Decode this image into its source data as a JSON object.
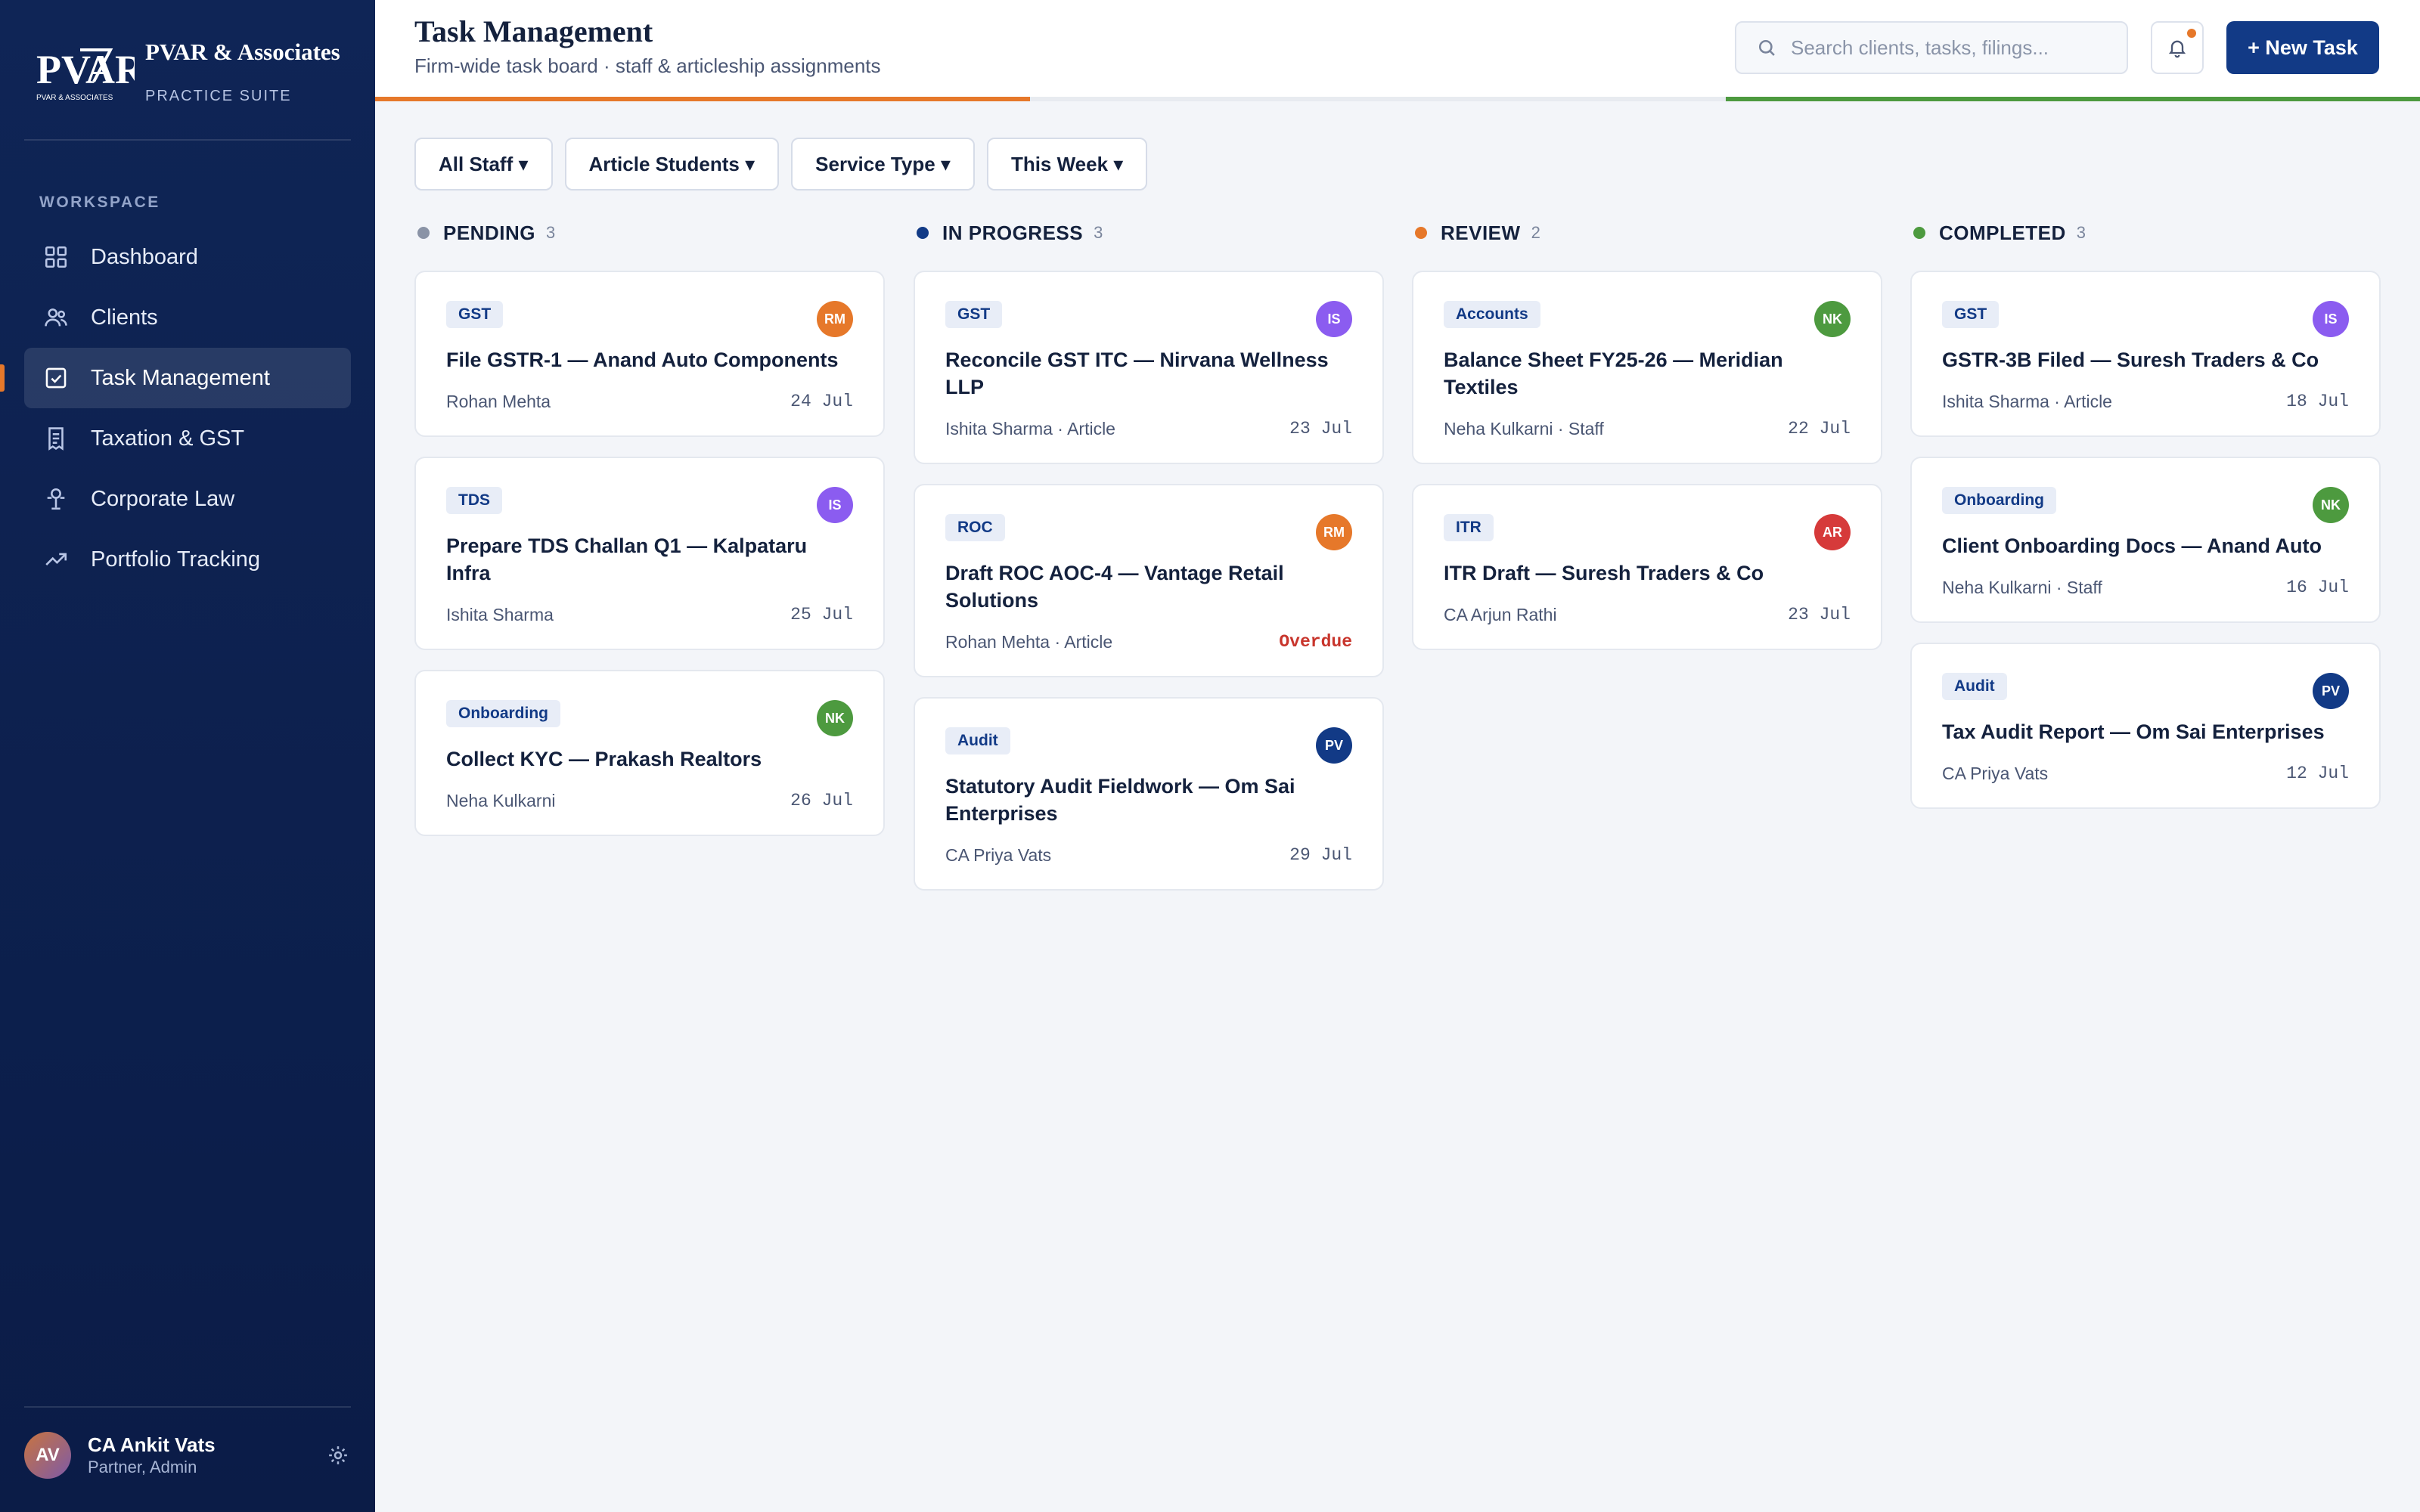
{
  "brand": {
    "name": "PVAR & Associates",
    "subtitle": "PRACTICE SUITE",
    "logo_text": "PVAR",
    "logo_caption": "PVAR & ASSOCIATES"
  },
  "sidebar": {
    "section_label": "WORKSPACE",
    "items": [
      {
        "label": "Dashboard",
        "icon": "grid-icon"
      },
      {
        "label": "Clients",
        "icon": "users-icon"
      },
      {
        "label": "Task Management",
        "icon": "checkbox-icon",
        "active": true
      },
      {
        "label": "Taxation & GST",
        "icon": "receipt-icon"
      },
      {
        "label": "Corporate Law",
        "icon": "scales-icon"
      },
      {
        "label": "Portfolio Tracking",
        "icon": "trend-up-icon"
      }
    ],
    "user": {
      "initials": "AV",
      "name": "CA Ankit Vats",
      "role": "Partner, Admin"
    }
  },
  "header": {
    "title": "Task Management",
    "subtitle": "Firm-wide task board · staff & articleship assignments",
    "search_placeholder": "Search clients, tasks, filings...",
    "new_task_label": "+ New Task"
  },
  "filters": [
    "All Staff ▾",
    "Article Students ▾",
    "Service Type ▾",
    "This Week ▾"
  ],
  "colors": {
    "pending": "#8a93a6",
    "in_progress": "#123a86",
    "review": "#e6782a",
    "completed": "#4d9a3f",
    "avatar_RM": "#e6782a",
    "avatar_IS": "#8b5cf0",
    "avatar_NK": "#4d9a3f",
    "avatar_AR": "#d63a3a",
    "avatar_PV": "#123a86"
  },
  "columns": [
    {
      "title": "PENDING",
      "count": "3",
      "color": "#8a93a6",
      "cards": [
        {
          "tag": "GST",
          "avatar": "RM",
          "avatar_color": "#e6782a",
          "title": "File GSTR-1 — Anand Auto Components",
          "assignee": "Rohan Mehta",
          "due": "24 Jul"
        },
        {
          "tag": "TDS",
          "avatar": "IS",
          "avatar_color": "#8b5cf0",
          "title": "Prepare TDS Challan Q1 — Kalpataru Infra",
          "assignee": "Ishita Sharma",
          "due": "25 Jul"
        },
        {
          "tag": "Onboarding",
          "avatar": "NK",
          "avatar_color": "#4d9a3f",
          "title": "Collect KYC — Prakash Realtors",
          "assignee": "Neha Kulkarni",
          "due": "26 Jul"
        }
      ]
    },
    {
      "title": "IN PROGRESS",
      "count": "3",
      "color": "#123a86",
      "cards": [
        {
          "tag": "GST",
          "avatar": "IS",
          "avatar_color": "#8b5cf0",
          "title": "Reconcile GST ITC — Nirvana Wellness LLP",
          "assignee": "Ishita Sharma · Article",
          "due": "23 Jul"
        },
        {
          "tag": "ROC",
          "avatar": "RM",
          "avatar_color": "#e6782a",
          "title": "Draft ROC AOC-4 — Vantage Retail Solutions",
          "assignee": "Rohan Mehta · Article",
          "due": "Overdue",
          "overdue": true
        },
        {
          "tag": "Audit",
          "avatar": "PV",
          "avatar_color": "#123a86",
          "title": "Statutory Audit Fieldwork — Om Sai Enterprises",
          "assignee": "CA Priya Vats",
          "due": "29 Jul"
        }
      ]
    },
    {
      "title": "REVIEW",
      "count": "2",
      "color": "#e6782a",
      "cards": [
        {
          "tag": "Accounts",
          "avatar": "NK",
          "avatar_color": "#4d9a3f",
          "title": "Balance Sheet FY25-26 — Meridian Textiles",
          "assignee": "Neha Kulkarni · Staff",
          "due": "22 Jul"
        },
        {
          "tag": "ITR",
          "avatar": "AR",
          "avatar_color": "#d63a3a",
          "title": "ITR Draft — Suresh Traders & Co",
          "assignee": "CA Arjun Rathi",
          "due": "23 Jul"
        }
      ]
    },
    {
      "title": "COMPLETED",
      "count": "3",
      "color": "#4d9a3f",
      "cards": [
        {
          "tag": "GST",
          "avatar": "IS",
          "avatar_color": "#8b5cf0",
          "title": "GSTR-3B Filed — Suresh Traders & Co",
          "assignee": "Ishita Sharma · Article",
          "due": "18 Jul"
        },
        {
          "tag": "Onboarding",
          "avatar": "NK",
          "avatar_color": "#4d9a3f",
          "title": "Client Onboarding Docs — Anand Auto",
          "assignee": "Neha Kulkarni · Staff",
          "due": "16 Jul"
        },
        {
          "tag": "Audit",
          "avatar": "PV",
          "avatar_color": "#123a86",
          "title": "Tax Audit Report — Om Sai Enterprises",
          "assignee": "CA Priya Vats",
          "due": "12 Jul"
        }
      ]
    }
  ]
}
